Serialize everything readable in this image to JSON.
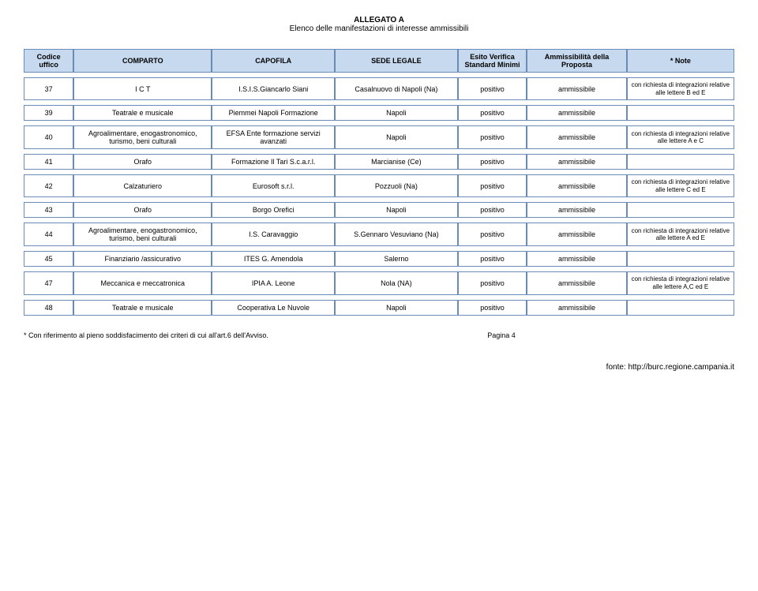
{
  "document": {
    "title": "ALLEGATO A",
    "subtitle": "Elenco delle manifestazioni di interesse ammissibili"
  },
  "columns": {
    "codice": "Codice uffico",
    "comparto": "COMPARTO",
    "capofila": "CAPOFILA",
    "sede": "SEDE LEGALE",
    "esito": "Esito Verifica Standard Minimi",
    "amm": "Ammissibilità della Proposta",
    "note": "* Note"
  },
  "rows": [
    {
      "codice": "37",
      "comparto": "I C T",
      "capofila": "I.S.I.S.Giancarlo Siani",
      "sede": "Casalnuovo di Napoli (Na)",
      "esito": "positivo",
      "amm": "ammissibile",
      "note": "con richiesta di integrazioni relative alle lettere B ed E"
    },
    {
      "codice": "39",
      "comparto": "Teatrale e musicale",
      "capofila": "Piemmei Napoli Formazione",
      "sede": "Napoli",
      "esito": "positivo",
      "amm": "ammissibile",
      "note": ""
    },
    {
      "codice": "40",
      "comparto": "Agroalimentare, enogastronomico, turismo, beni culturali",
      "capofila": "EFSA Ente formazione servizi avanzati",
      "sede": "Napoli",
      "esito": "positivo",
      "amm": "ammissibile",
      "note": "con richiesta di integrazioni relative alle lettere  A e C"
    },
    {
      "codice": "41",
      "comparto": "Orafo",
      "capofila": "Formazione Il Tari S.c.a.r.l.",
      "sede": "Marcianise (Ce)",
      "esito": "positivo",
      "amm": "ammissibile",
      "note": ""
    },
    {
      "codice": "42",
      "comparto": "Calzaturiero",
      "capofila": "Eurosoft s.r.l.",
      "sede": "Pozzuoli (Na)",
      "esito": "positivo",
      "amm": "ammissibile",
      "note": "con richiesta di integrazioni relative alle lettere  C ed E"
    },
    {
      "codice": "43",
      "comparto": "Orafo",
      "capofila": "Borgo Orefici",
      "sede": "Napoli",
      "esito": "positivo",
      "amm": "ammissibile",
      "note": ""
    },
    {
      "codice": "44",
      "comparto": "Agroalimentare, enogastronomico, turismo, beni culturali",
      "capofila": "I.S. Caravaggio",
      "sede": "S.Gennaro Vesuviano (Na)",
      "esito": "positivo",
      "amm": "ammissibile",
      "note": "con richiesta di integrazioni relative alle lettere  A ed E"
    },
    {
      "codice": "45",
      "comparto": "Finanziario /assicurativo",
      "capofila": "ITES G. Amendola",
      "sede": "Salerno",
      "esito": "positivo",
      "amm": "ammissibile",
      "note": ""
    },
    {
      "codice": "47",
      "comparto": "Meccanica e meccatronica",
      "capofila": "IPIA  A. Leone",
      "sede": "Nola (NA)",
      "esito": "positivo",
      "amm": "ammissibile",
      "note": "con richiesta di integrazioni relative alle lettere  A,C ed E"
    },
    {
      "codice": "48",
      "comparto": "Teatrale e musicale",
      "capofila": "Cooperativa Le Nuvole",
      "sede": "Napoli",
      "esito": "positivo",
      "amm": "ammissibile",
      "note": ""
    }
  ],
  "footer": {
    "footnote": "* Con riferimento al pieno soddisfacimento dei criteri di cui all'art.6 dell'Avviso.",
    "page": "Pagina 4",
    "source": "fonte: http://burc.regione.campania.it"
  }
}
